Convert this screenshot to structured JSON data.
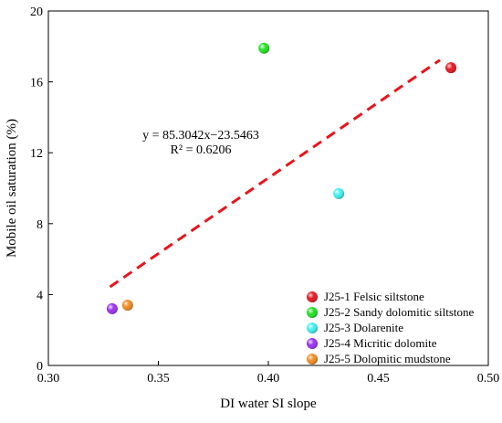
{
  "chart_data": {
    "type": "scatter",
    "xlabel": "DI water SI slope",
    "ylabel": "Mobile oil saturation (%)",
    "xlim": [
      0.3,
      0.5
    ],
    "ylim": [
      0,
      20
    ],
    "xticks": [
      "0.30",
      "0.35",
      "0.40",
      "0.45",
      "0.50"
    ],
    "yticks": [
      "0",
      "4",
      "8",
      "12",
      "16",
      "20"
    ],
    "grid": false,
    "legend_position": "bottom-right",
    "series": [
      {
        "name": "J25-1 Felsic siltstone",
        "color": "#e8141c",
        "points": [
          {
            "x": 0.483,
            "y": 16.8
          }
        ]
      },
      {
        "name": "J25-2 Sandy dolomitic siltstone",
        "color": "#1ee21e",
        "points": [
          {
            "x": 0.398,
            "y": 17.9
          }
        ]
      },
      {
        "name": "J25-3 Dolarenite",
        "color": "#3ef0f0",
        "points": [
          {
            "x": 0.432,
            "y": 9.7
          }
        ]
      },
      {
        "name": "J25-4 Micritic dolomite",
        "color": "#9a2ef0",
        "points": [
          {
            "x": 0.329,
            "y": 3.2
          }
        ]
      },
      {
        "name": "J25-5 Dolomitic mudstone",
        "color": "#f28a1e",
        "points": [
          {
            "x": 0.336,
            "y": 3.4
          }
        ]
      }
    ],
    "fit_line": {
      "slope": 85.3042,
      "intercept": -23.5463,
      "x_range": [
        0.328,
        0.478
      ],
      "color": "#e8141c",
      "style": "dashed",
      "equation": "y = 85.3042x−23.5463",
      "r_squared": "R² = 0.6206"
    }
  }
}
